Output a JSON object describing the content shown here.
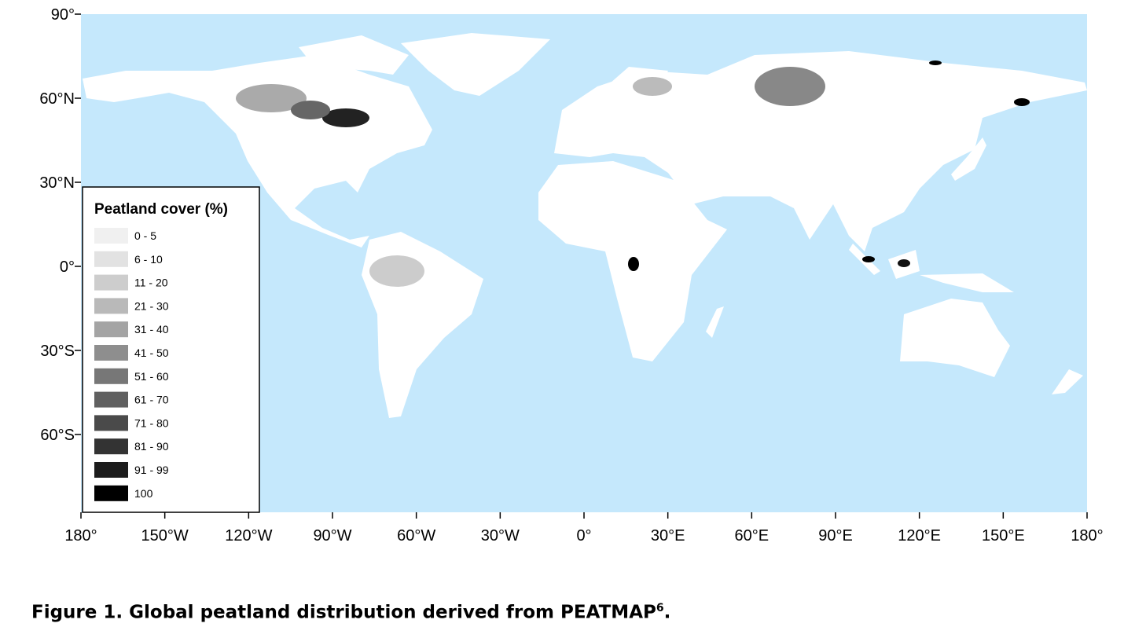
{
  "map": {
    "lat_labels": [
      "90°",
      "60°N",
      "30°N",
      "0°",
      "30°S",
      "60°S"
    ],
    "lon_labels": [
      "180°",
      "150°W",
      "120°W",
      "90°W",
      "60°W",
      "30°W",
      "0°",
      "30°E",
      "60°E",
      "90°E",
      "120°E",
      "150°E",
      "180°"
    ],
    "ocean_color": "#c5e8fc",
    "land_color": "#ffffff"
  },
  "legend": {
    "title": "Peatland cover (%)",
    "entries": [
      {
        "label": "0 - 5",
        "color": "#f0f0f0"
      },
      {
        "label": "6 - 10",
        "color": "#e2e2e2"
      },
      {
        "label": "11 - 20",
        "color": "#cdcdcd"
      },
      {
        "label": "21 - 30",
        "color": "#b9b9b9"
      },
      {
        "label": "31 - 40",
        "color": "#a4a4a4"
      },
      {
        "label": "41 - 50",
        "color": "#8e8e8e"
      },
      {
        "label": "51 - 60",
        "color": "#777777"
      },
      {
        "label": "61 - 70",
        "color": "#606060"
      },
      {
        "label": "71 - 80",
        "color": "#4a4a4a"
      },
      {
        "label": "81 - 90",
        "color": "#333333"
      },
      {
        "label": "91 - 99",
        "color": "#1c1c1c"
      },
      {
        "label": "100",
        "color": "#000000"
      }
    ]
  },
  "caption": {
    "text": "Figure 1. Global peatland distribution derived from PEATMAP",
    "superscript": "6",
    "end": "."
  }
}
